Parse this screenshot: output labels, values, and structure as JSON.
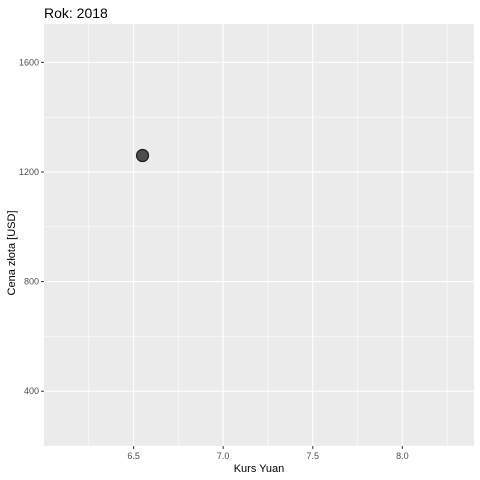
{
  "chart_data": {
    "type": "scatter",
    "title": "Rok: 2018",
    "xlabel": "Kurs Yuan",
    "ylabel": "Cena złota [USD]",
    "xlim": [
      6.0,
      8.4
    ],
    "ylim": [
      200,
      1740
    ],
    "x_ticks": [
      6.5,
      7.0,
      7.5,
      8.0
    ],
    "x_tick_labels": [
      "6.5",
      "7.0",
      "7.5",
      "8.0"
    ],
    "y_ticks": [
      400,
      800,
      1200,
      1600
    ],
    "y_tick_labels": [
      "400",
      "800",
      "1200",
      "1600"
    ],
    "grid": true,
    "panel_color": "#ebebeb",
    "grid_color": "#ffffff",
    "point_fill": "#4d4d4d",
    "point_stroke": "#1a1a1a",
    "points": [
      {
        "x": 6.55,
        "y": 1260
      }
    ]
  }
}
